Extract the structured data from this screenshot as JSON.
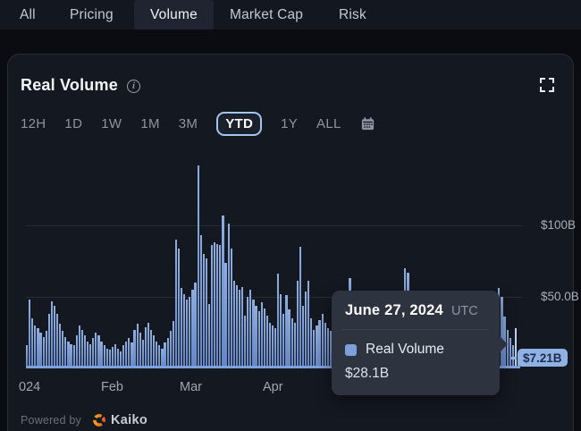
{
  "tabs": {
    "items": [
      {
        "label": "All",
        "active": false
      },
      {
        "label": "Pricing",
        "active": false
      },
      {
        "label": "Volume",
        "active": true
      },
      {
        "label": "Market Cap",
        "active": false
      },
      {
        "label": "Risk",
        "active": false
      }
    ]
  },
  "panel": {
    "title": "Real Volume",
    "ranges": [
      {
        "label": "12H",
        "active": false
      },
      {
        "label": "1D",
        "active": false
      },
      {
        "label": "1W",
        "active": false
      },
      {
        "label": "1M",
        "active": false
      },
      {
        "label": "3M",
        "active": false
      },
      {
        "label": "YTD",
        "active": true
      },
      {
        "label": "1Y",
        "active": false
      },
      {
        "label": "ALL",
        "active": false
      }
    ]
  },
  "icons": {
    "info-icon": "i",
    "fullscreen-icon": "corner brackets",
    "calendar-icon": "calendar outline",
    "kaiko-logo-icon": "orange broken-circle swirl"
  },
  "chart_data": {
    "type": "bar",
    "title": "Real Volume",
    "timeframe": "YTD",
    "unit": "$B",
    "ylim": [
      0,
      150
    ],
    "grid": "horizontal",
    "y_ticks": [
      {
        "value": 100,
        "label": "$100B"
      },
      {
        "value": 50,
        "label": "$50.0B"
      }
    ],
    "x_tick_labels": [
      "024",
      "Feb",
      "Mar",
      "Apr"
    ],
    "series_name": "Real Volume",
    "bar_color": "#7fa0d8",
    "highlight_index": 177,
    "values": [
      16,
      48,
      35,
      30,
      28,
      25,
      22,
      26,
      38,
      47,
      44,
      38,
      31,
      26,
      22,
      19,
      17,
      16,
      23,
      30,
      27,
      23,
      19,
      17,
      21,
      25,
      23,
      19,
      16,
      14,
      13,
      15,
      17,
      14,
      12,
      16,
      19,
      21,
      18,
      27,
      31,
      25,
      20,
      29,
      32,
      27,
      23,
      19,
      16,
      14,
      18,
      21,
      26,
      33,
      90,
      84,
      56,
      52,
      48,
      50,
      55,
      60,
      142,
      93,
      80,
      77,
      45,
      86,
      88,
      87,
      86,
      107,
      74,
      101,
      84,
      61,
      58,
      55,
      57,
      37,
      50,
      55,
      48,
      44,
      40,
      46,
      42,
      37,
      32,
      30,
      28,
      66,
      52,
      38,
      51,
      41,
      35,
      32,
      61,
      85,
      44,
      54,
      61,
      35,
      27,
      30,
      34,
      38,
      32,
      28,
      26,
      30,
      33,
      29,
      27,
      25,
      28,
      63,
      40,
      34,
      30,
      28,
      25,
      23,
      26,
      30,
      27,
      24,
      22,
      25,
      28,
      32,
      29,
      26,
      30,
      35,
      38,
      70,
      67,
      45,
      40,
      36,
      33,
      30,
      34,
      31,
      28,
      26,
      29,
      32,
      30,
      27,
      30,
      28,
      26,
      29,
      32,
      35,
      38,
      34,
      30,
      28,
      26,
      24,
      27,
      30,
      33,
      36,
      40,
      45,
      50,
      56,
      50,
      36,
      27,
      21,
      16,
      28.1,
      7.21
    ]
  },
  "tooltip": {
    "date": "June 27, 2024",
    "timezone": "UTC",
    "series": "Real Volume",
    "value": "$28.1B",
    "swatch_color": "#7da0dc"
  },
  "badge": {
    "label": "$7.21B"
  },
  "footer": {
    "powered_by": "Powered by",
    "brand": "Kaiko"
  },
  "colors": {
    "page_bg": "#0a0c11",
    "panel_bg": "#141821",
    "bar": "#7fa0d8",
    "bar_highlight": "#bcd4f3",
    "badge_bg": "#8fb1e3",
    "badge_text": "#1e2d4d",
    "tooltip_bg": "#2d3440",
    "ytd_border": "#a4c4ee"
  }
}
